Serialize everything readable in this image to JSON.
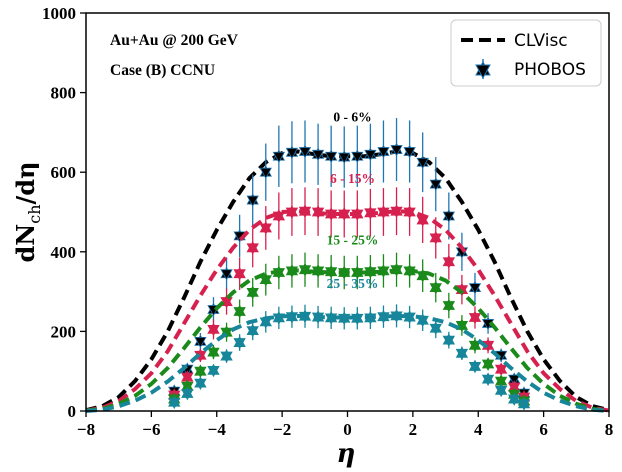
{
  "chart_data": {
    "type": "line",
    "xlabel": "η",
    "ylabel_parts": {
      "main": "dN",
      "sub": "ch",
      "tail": "/dη"
    },
    "xlim": [
      -8,
      8
    ],
    "ylim": [
      0,
      1000
    ],
    "xticks": [
      -8,
      -6,
      -4,
      -2,
      0,
      2,
      4,
      6,
      8
    ],
    "yticks": [
      0,
      200,
      400,
      600,
      800,
      1000
    ],
    "annotations": [
      "Au+Au @ 200 GeV",
      "Case (B)  CCNU"
    ],
    "legend": {
      "placement": "top-right",
      "entries": [
        "CLVisc",
        "PHOBOS"
      ]
    },
    "series": [
      {
        "centrality": "0 - 6%",
        "color": "#000000",
        "marker_color": "#1f77b4",
        "clvisc": {
          "x": [
            -8,
            -7.5,
            -7,
            -6.5,
            -6,
            -5.5,
            -5,
            -4.5,
            -4,
            -3.5,
            -3,
            -2.5,
            -2,
            -1.5,
            -1,
            -0.5,
            0,
            0.5,
            1,
            1.5,
            2,
            2.5,
            3,
            3.5,
            4,
            4.5,
            5,
            5.5,
            6,
            6.5,
            7,
            7.5,
            8
          ],
          "y": [
            2,
            12,
            35,
            75,
            130,
            200,
            285,
            375,
            455,
            525,
            585,
            625,
            648,
            652,
            645,
            640,
            640,
            640,
            645,
            652,
            648,
            625,
            585,
            525,
            455,
            375,
            285,
            200,
            130,
            75,
            35,
            12,
            2
          ]
        },
        "phobos": {
          "x": [
            -5.3,
            -4.9,
            -4.5,
            -4.1,
            -3.7,
            -3.3,
            -2.9,
            -2.5,
            -2.1,
            -1.7,
            -1.3,
            -0.9,
            -0.5,
            -0.1,
            0.3,
            0.7,
            1.1,
            1.5,
            1.9,
            2.3,
            2.7,
            3.1,
            3.5,
            3.9,
            4.3,
            4.7,
            5.1,
            5.4
          ],
          "y": [
            50,
            105,
            175,
            255,
            345,
            440,
            530,
            600,
            640,
            650,
            652,
            645,
            640,
            638,
            640,
            645,
            652,
            657,
            652,
            625,
            570,
            490,
            400,
            310,
            220,
            140,
            80,
            45
          ],
          "yerr": [
            6,
            13,
            21,
            31,
            41,
            53,
            64,
            72,
            77,
            78,
            78,
            77,
            77,
            77,
            77,
            77,
            78,
            79,
            78,
            75,
            68,
            59,
            48,
            37,
            26,
            17,
            10,
            6
          ]
        }
      },
      {
        "centrality": "6 - 15%",
        "color": "#d6214f",
        "marker_color": "#d6214f",
        "clvisc": {
          "x": [
            -8,
            -7.5,
            -7,
            -6.5,
            -6,
            -5.5,
            -5,
            -4.5,
            -4,
            -3.5,
            -3,
            -2.5,
            -2,
            -1.5,
            -1,
            -0.5,
            0,
            0.5,
            1,
            1.5,
            2,
            2.5,
            3,
            3.5,
            4,
            4.5,
            5,
            5.5,
            6,
            6.5,
            7,
            7.5,
            8
          ],
          "y": [
            1,
            8,
            25,
            55,
            95,
            150,
            220,
            290,
            355,
            410,
            455,
            485,
            500,
            502,
            498,
            495,
            495,
            495,
            498,
            502,
            500,
            485,
            455,
            410,
            355,
            290,
            220,
            150,
            95,
            55,
            25,
            8,
            1
          ]
        },
        "phobos": {
          "x": [
            -5.3,
            -4.9,
            -4.5,
            -4.1,
            -3.7,
            -3.3,
            -2.9,
            -2.5,
            -2.1,
            -1.7,
            -1.3,
            -0.9,
            -0.5,
            -0.1,
            0.3,
            0.7,
            1.1,
            1.5,
            1.9,
            2.3,
            2.7,
            3.1,
            3.5,
            3.9,
            4.3,
            4.7,
            5.1,
            5.4
          ],
          "y": [
            40,
            85,
            140,
            205,
            275,
            345,
            410,
            460,
            490,
            500,
            502,
            500,
            495,
            495,
            495,
            498,
            500,
            502,
            500,
            480,
            435,
            375,
            305,
            235,
            165,
            105,
            60,
            35
          ],
          "yerr": [
            5,
            10,
            17,
            25,
            33,
            41,
            49,
            55,
            59,
            60,
            60,
            60,
            59,
            59,
            59,
            60,
            60,
            60,
            60,
            58,
            52,
            45,
            37,
            28,
            20,
            13,
            7,
            4
          ]
        }
      },
      {
        "centrality": "15 - 25%",
        "color": "#1a8a1a",
        "marker_color": "#1a8a1a",
        "clvisc": {
          "x": [
            -8,
            -7.5,
            -7,
            -6.5,
            -6,
            -5.5,
            -5,
            -4.5,
            -4,
            -3.5,
            -3,
            -2.5,
            -2,
            -1.5,
            -1,
            -0.5,
            0,
            0.5,
            1,
            1.5,
            2,
            2.5,
            3,
            3.5,
            4,
            4.5,
            5,
            5.5,
            6,
            6.5,
            7,
            7.5,
            8
          ],
          "y": [
            1,
            5,
            18,
            38,
            68,
            108,
            158,
            210,
            258,
            298,
            328,
            345,
            352,
            353,
            350,
            348,
            348,
            348,
            350,
            353,
            352,
            345,
            328,
            298,
            258,
            210,
            158,
            108,
            68,
            38,
            18,
            5,
            1
          ]
        },
        "phobos": {
          "x": [
            -5.3,
            -4.9,
            -4.5,
            -4.1,
            -3.7,
            -3.3,
            -2.9,
            -2.5,
            -2.1,
            -1.7,
            -1.3,
            -0.9,
            -0.5,
            -0.1,
            0.3,
            0.7,
            1.1,
            1.5,
            1.9,
            2.3,
            2.7,
            3.1,
            3.5,
            3.9,
            4.3,
            4.7,
            5.1,
            5.4
          ],
          "y": [
            30,
            62,
            100,
            148,
            198,
            250,
            298,
            330,
            348,
            352,
            355,
            352,
            350,
            348,
            348,
            350,
            352,
            355,
            352,
            340,
            310,
            265,
            215,
            165,
            118,
            75,
            42,
            25
          ],
          "yerr": [
            4,
            8,
            12,
            18,
            24,
            30,
            36,
            40,
            42,
            42,
            43,
            42,
            42,
            42,
            42,
            42,
            42,
            43,
            42,
            41,
            37,
            32,
            26,
            20,
            14,
            9,
            5,
            3
          ]
        }
      },
      {
        "centrality": "25 - 35%",
        "color": "#17869b",
        "marker_color": "#17869b",
        "clvisc": {
          "x": [
            -8,
            -7.5,
            -7,
            -6.5,
            -6,
            -5.5,
            -5,
            -4.5,
            -4,
            -3.5,
            -3,
            -2.5,
            -2,
            -1.5,
            -1,
            -0.5,
            0,
            0.5,
            1,
            1.5,
            2,
            2.5,
            3,
            3.5,
            4,
            4.5,
            5,
            5.5,
            6,
            6.5,
            7,
            7.5,
            8
          ],
          "y": [
            0,
            3,
            12,
            26,
            46,
            74,
            108,
            145,
            178,
            205,
            223,
            233,
            238,
            239,
            237,
            235,
            235,
            235,
            237,
            239,
            238,
            233,
            223,
            205,
            178,
            145,
            108,
            74,
            46,
            26,
            12,
            3,
            0
          ]
        },
        "phobos": {
          "x": [
            -5.3,
            -4.9,
            -4.5,
            -4.1,
            -3.7,
            -3.3,
            -2.9,
            -2.5,
            -2.1,
            -1.7,
            -1.3,
            -0.9,
            -0.5,
            -0.1,
            0.3,
            0.7,
            1.1,
            1.5,
            1.9,
            2.3,
            2.7,
            3.1,
            3.5,
            3.9,
            4.3,
            4.7,
            5.1,
            5.4
          ],
          "y": [
            22,
            44,
            70,
            102,
            138,
            172,
            202,
            224,
            234,
            237,
            238,
            236,
            234,
            233,
            233,
            234,
            237,
            239,
            236,
            228,
            208,
            178,
            145,
            112,
            80,
            52,
            30,
            18
          ],
          "yerr": [
            3,
            5,
            8,
            12,
            17,
            21,
            24,
            27,
            28,
            28,
            29,
            28,
            28,
            28,
            28,
            28,
            28,
            29,
            28,
            27,
            25,
            21,
            17,
            13,
            10,
            6,
            4,
            2
          ]
        }
      }
    ]
  }
}
